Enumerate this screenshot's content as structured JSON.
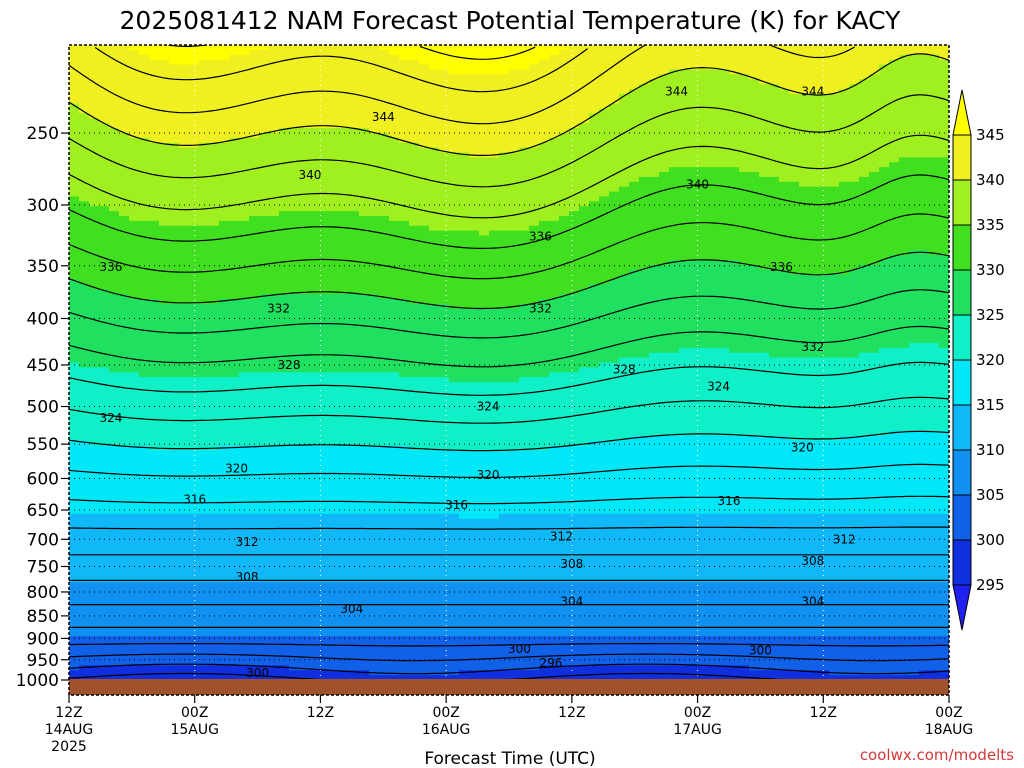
{
  "chart_data": {
    "type": "heatmap",
    "title": "2025081412 NAM Forecast Potential Temperature (K) for KACY",
    "xlabel": "Forecast Time (UTC)",
    "ylabel": "",
    "credit": "coolwx.com/modelts",
    "y_scale": "log",
    "y_reversed": true,
    "ylim": [
      1000,
      200
    ],
    "y_ticks": [
      250,
      300,
      350,
      400,
      450,
      500,
      550,
      600,
      650,
      700,
      750,
      800,
      850,
      900,
      950,
      1000
    ],
    "x_ticks": [
      {
        "hour": 0,
        "lines": [
          "12Z",
          "14AUG",
          "2025"
        ]
      },
      {
        "hour": 12,
        "lines": [
          "00Z",
          "15AUG"
        ]
      },
      {
        "hour": 24,
        "lines": [
          "12Z"
        ]
      },
      {
        "hour": 36,
        "lines": [
          "00Z",
          "16AUG"
        ]
      },
      {
        "hour": 48,
        "lines": [
          "12Z"
        ]
      },
      {
        "hour": 60,
        "lines": [
          "00Z",
          "17AUG"
        ]
      },
      {
        "hour": 72,
        "lines": [
          "12Z"
        ]
      },
      {
        "hour": 84,
        "lines": [
          "00Z",
          "18AUG"
        ]
      }
    ],
    "grid": true,
    "colorbar": {
      "levels": [
        295,
        300,
        305,
        310,
        315,
        320,
        325,
        330,
        335,
        340,
        345
      ],
      "colors": [
        "#2020f0",
        "#1030e0",
        "#1060e8",
        "#1090f0",
        "#10b8f8",
        "#00e8f8",
        "#10f0c8",
        "#20e060",
        "#40e020",
        "#a0f020",
        "#f0f020",
        "#ffff00"
      ],
      "extend": "both",
      "placement": "right"
    },
    "contour_labels": [
      {
        "value": "344",
        "hour": 30,
        "p": 240
      },
      {
        "value": "344",
        "hour": 58,
        "p": 225
      },
      {
        "value": "344",
        "hour": 71,
        "p": 225
      },
      {
        "value": "340",
        "hour": 23,
        "p": 278
      },
      {
        "value": "340",
        "hour": 60,
        "p": 285
      },
      {
        "value": "336",
        "hour": 4,
        "p": 351
      },
      {
        "value": "336",
        "hour": 45,
        "p": 325
      },
      {
        "value": "336",
        "hour": 68,
        "p": 351
      },
      {
        "value": "332",
        "hour": 20,
        "p": 390
      },
      {
        "value": "332",
        "hour": 45,
        "p": 390
      },
      {
        "value": "332",
        "hour": 71,
        "p": 430
      },
      {
        "value": "328",
        "hour": 21,
        "p": 450
      },
      {
        "value": "328",
        "hour": 53,
        "p": 455
      },
      {
        "value": "324",
        "hour": 4,
        "p": 515
      },
      {
        "value": "324",
        "hour": 40,
        "p": 500
      },
      {
        "value": "324",
        "hour": 62,
        "p": 475
      },
      {
        "value": "320",
        "hour": 16,
        "p": 585
      },
      {
        "value": "320",
        "hour": 40,
        "p": 595
      },
      {
        "value": "320",
        "hour": 70,
        "p": 555
      },
      {
        "value": "316",
        "hour": 12,
        "p": 633
      },
      {
        "value": "316",
        "hour": 37,
        "p": 642
      },
      {
        "value": "316",
        "hour": 63,
        "p": 635
      },
      {
        "value": "312",
        "hour": 17,
        "p": 705
      },
      {
        "value": "312",
        "hour": 47,
        "p": 695
      },
      {
        "value": "312",
        "hour": 74,
        "p": 700
      },
      {
        "value": "308",
        "hour": 17,
        "p": 770
      },
      {
        "value": "308",
        "hour": 48,
        "p": 745
      },
      {
        "value": "308",
        "hour": 71,
        "p": 740
      },
      {
        "value": "304",
        "hour": 27,
        "p": 835
      },
      {
        "value": "304",
        "hour": 48,
        "p": 820
      },
      {
        "value": "304",
        "hour": 71,
        "p": 820
      },
      {
        "value": "300",
        "hour": 43,
        "p": 925
      },
      {
        "value": "300",
        "hour": 66,
        "p": 928
      },
      {
        "value": "300",
        "hour": 18,
        "p": 982
      },
      {
        "value": "296",
        "hour": 46,
        "p": 958
      }
    ]
  }
}
